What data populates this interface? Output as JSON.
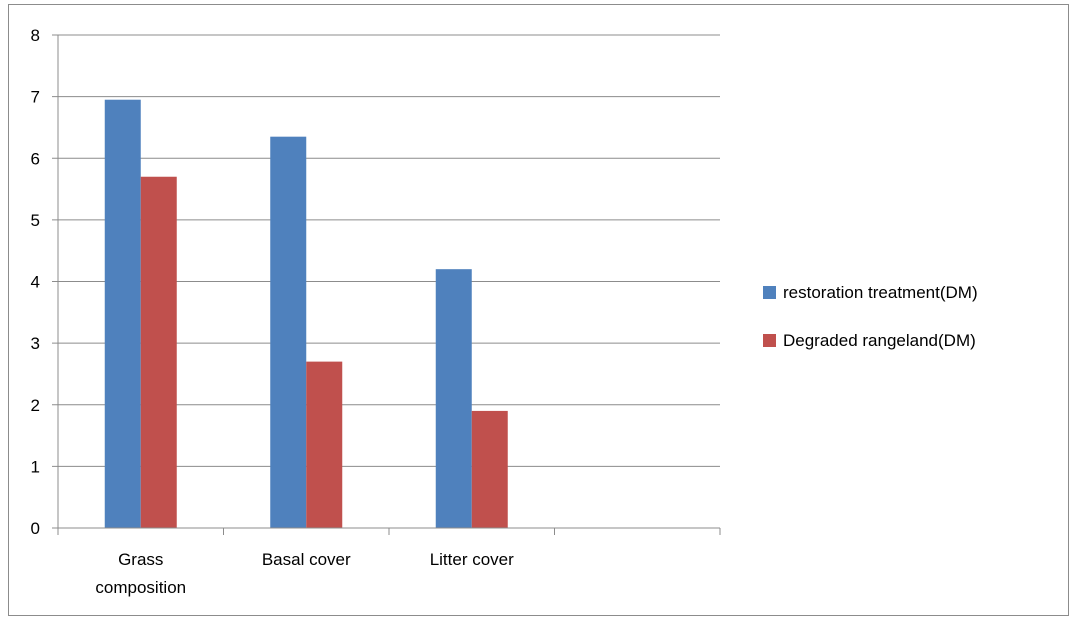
{
  "chart_data": {
    "type": "bar",
    "categories": [
      [
        "Grass",
        "composition"
      ],
      [
        "Basal cover"
      ],
      [
        "Litter cover"
      ],
      [
        ""
      ]
    ],
    "series": [
      {
        "name": "restoration treatment(DM)",
        "color": "#4F81BD",
        "values": [
          6.95,
          6.35,
          4.2,
          null
        ]
      },
      {
        "name": "Degraded rangeland(DM)",
        "color": "#C0504D",
        "values": [
          5.7,
          2.7,
          1.9,
          null
        ]
      }
    ],
    "ylim": [
      0,
      8
    ],
    "yticks": [
      0,
      1,
      2,
      3,
      4,
      5,
      6,
      7,
      8
    ],
    "grid": true,
    "legend_position": "right",
    "gridline_color": "#8c8c8c"
  }
}
